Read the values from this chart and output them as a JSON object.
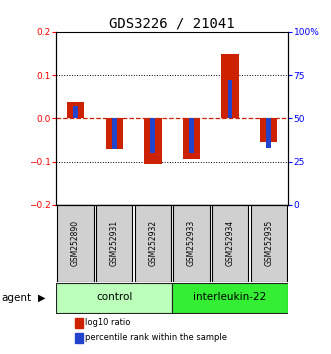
{
  "title": "GDS3226 / 21041",
  "samples": [
    "GSM252890",
    "GSM252931",
    "GSM252932",
    "GSM252933",
    "GSM252934",
    "GSM252935"
  ],
  "log10_ratio": [
    0.038,
    -0.07,
    -0.105,
    -0.095,
    0.148,
    -0.055
  ],
  "percentile_rank": [
    57,
    32,
    30,
    30,
    72,
    33
  ],
  "ylim_left": [
    -0.2,
    0.2
  ],
  "ylim_right": [
    0,
    100
  ],
  "yticks_left": [
    -0.2,
    -0.1,
    0,
    0.1,
    0.2
  ],
  "yticks_right": [
    0,
    25,
    50,
    75,
    100
  ],
  "groups": [
    {
      "label": "control",
      "indices": [
        0,
        1,
        2
      ],
      "color": "#bbffbb"
    },
    {
      "label": "interleukin-22",
      "indices": [
        3,
        4,
        5
      ],
      "color": "#33ee33"
    }
  ],
  "bar_color_red": "#cc2200",
  "bar_color_blue": "#2244cc",
  "bar_width": 0.45,
  "blue_bar_width": 0.12,
  "zero_line_color": "#cc2200",
  "agent_label": "agent",
  "legend_red": "log10 ratio",
  "legend_blue": "percentile rank within the sample",
  "title_fontsize": 10,
  "tick_fontsize": 6.5,
  "sample_fontsize": 5.5,
  "legend_fontsize": 6.0,
  "agent_fontsize": 7.5,
  "group_fontsize": 7.5
}
